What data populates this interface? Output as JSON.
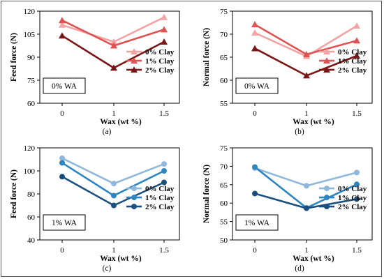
{
  "figure": {
    "panel_labels": [
      "(a)",
      "(b)",
      "(c)",
      "(d)"
    ]
  },
  "chart_data": [
    {
      "type": "line",
      "panel": "(a)",
      "annotation": "0% WA",
      "xlabel": "Wax (wt %)",
      "ylabel": "Feed force (N)",
      "categories": [
        "0",
        "1",
        "1.5"
      ],
      "ylim": [
        60,
        120
      ],
      "yticks": [
        60,
        75,
        90,
        105,
        120
      ],
      "grid": false,
      "legend_position": "right",
      "marker": "triangle",
      "series": [
        {
          "name": "0% Clay",
          "values": [
            111,
            100,
            116
          ],
          "color": "#f4a3a3"
        },
        {
          "name": "1% Clay",
          "values": [
            114,
            97.5,
            108
          ],
          "color": "#e05252"
        },
        {
          "name": "2% Clay",
          "values": [
            104,
            83,
            100
          ],
          "color": "#7b1616"
        }
      ]
    },
    {
      "type": "line",
      "panel": "(b)",
      "annotation": "0% WA",
      "xlabel": "Wax (wt %)",
      "ylabel": "Normal force (N)",
      "categories": [
        "0",
        "1",
        "1.5"
      ],
      "ylim": [
        55,
        75
      ],
      "yticks": [
        55,
        60,
        65,
        70,
        75
      ],
      "grid": false,
      "legend_position": "right",
      "marker": "triangle",
      "series": [
        {
          "name": "0% Clay",
          "values": [
            70.3,
            65.2,
            71.8
          ],
          "color": "#f4a3a3"
        },
        {
          "name": "1% Clay",
          "values": [
            72.1,
            65.6,
            68.6
          ],
          "color": "#e05252"
        },
        {
          "name": "2% Clay",
          "values": [
            66.9,
            61.0,
            65.3
          ],
          "color": "#7b1616"
        }
      ]
    },
    {
      "type": "line",
      "panel": "(c)",
      "annotation": "1% WA",
      "xlabel": "Wax (wt %)",
      "ylabel": "Feed force (N)",
      "categories": [
        "0",
        "1",
        "1.5"
      ],
      "ylim": [
        40,
        120
      ],
      "yticks": [
        40,
        60,
        80,
        100,
        120
      ],
      "grid": false,
      "legend_position": "right",
      "marker": "circle",
      "series": [
        {
          "name": "0% Clay",
          "values": [
            111,
            89,
            106
          ],
          "color": "#8fb8dc"
        },
        {
          "name": "1% Clay",
          "values": [
            107,
            78.5,
            100
          ],
          "color": "#2e86c1"
        },
        {
          "name": "2% Clay",
          "values": [
            95,
            70,
            90
          ],
          "color": "#1b4f80"
        }
      ]
    },
    {
      "type": "line",
      "panel": "(d)",
      "annotation": "1% WA",
      "xlabel": "Wax (wt %)",
      "ylabel": "Normal force (N)",
      "categories": [
        "0",
        "1",
        "1.5"
      ],
      "ylim": [
        50,
        75
      ],
      "yticks": [
        50,
        55,
        60,
        65,
        70,
        75
      ],
      "grid": false,
      "legend_position": "right",
      "marker": "circle",
      "series": [
        {
          "name": "0% Clay",
          "values": [
            69.5,
            64.7,
            68.3
          ],
          "color": "#8fb8dc"
        },
        {
          "name": "1% Clay",
          "values": [
            69.8,
            58.7,
            65.1
          ],
          "color": "#2e86c1"
        },
        {
          "name": "2% Clay",
          "values": [
            62.6,
            58.6,
            61.1
          ],
          "color": "#1b4f80"
        }
      ]
    }
  ]
}
